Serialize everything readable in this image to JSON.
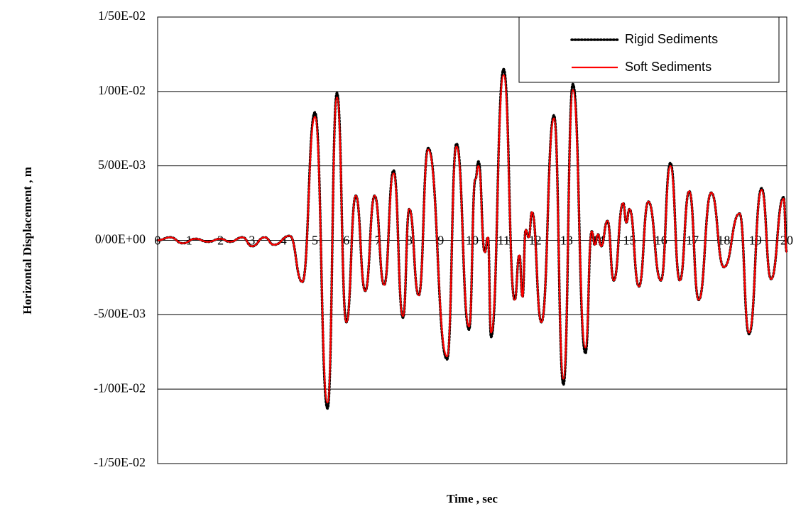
{
  "chart_data": {
    "type": "line",
    "xlabel": "Time  , sec",
    "ylabel": "Horizontal Displacement  , m",
    "xlim": [
      0,
      20
    ],
    "xticks": [
      0,
      1,
      2,
      3,
      4,
      5,
      6,
      7,
      8,
      9,
      10,
      11,
      12,
      13,
      14,
      15,
      16,
      17,
      18,
      19,
      20
    ],
    "ylim": [
      -0.015,
      0.015
    ],
    "yticks": [
      {
        "value": -0.015,
        "label": "-1/50E-02"
      },
      {
        "value": -0.01,
        "label": "-1/00E-02"
      },
      {
        "value": -0.005,
        "label": "-5/00E-03"
      },
      {
        "value": 0,
        "label": "0/00E+00"
      },
      {
        "value": 0.005,
        "label": "5/00E-03"
      },
      {
        "value": 0.01,
        "label": "1/00E-02"
      },
      {
        "value": 0.015,
        "label": "1/50E-02"
      }
    ],
    "grid": true,
    "legend": "upper right",
    "x": [
      0,
      0.4,
      0.8,
      1.2,
      1.6,
      2.0,
      2.3,
      2.7,
      3.0,
      3.4,
      3.7,
      4.2,
      4.6,
      5.0,
      5.4,
      5.7,
      6.0,
      6.3,
      6.6,
      6.9,
      7.2,
      7.5,
      7.8,
      8.0,
      8.3,
      8.6,
      9.2,
      9.5,
      9.9,
      10.1,
      10.2,
      10.4,
      10.5,
      10.6,
      11.0,
      11.35,
      11.5,
      11.6,
      11.7,
      11.8,
      11.9,
      12.2,
      12.6,
      12.9,
      13.2,
      13.6,
      13.8,
      13.9,
      14.0,
      14.1,
      14.3,
      14.5,
      14.8,
      14.9,
      15.0,
      15.3,
      15.6,
      16.0,
      16.3,
      16.6,
      16.9,
      17.2,
      17.6,
      18.0,
      18.5,
      18.8,
      19.2,
      19.5,
      19.9,
      20
    ],
    "series": [
      {
        "name": "Rigid Sediments",
        "color": "#000000",
        "style": "dotted",
        "values": [
          0,
          0.0002,
          -0.0002,
          0.0001,
          -0.0001,
          0.0001,
          -0.0001,
          0.0002,
          -0.0004,
          0.0002,
          -0.0003,
          0.0003,
          -0.0028,
          0.0086,
          -0.0113,
          0.0099,
          -0.0055,
          0.003,
          -0.0034,
          0.003,
          -0.003,
          0.0047,
          -0.0052,
          0.0021,
          -0.0037,
          0.0062,
          -0.008,
          0.0065,
          -0.006,
          0.0041,
          0.0053,
          -0.0008,
          0.0002,
          -0.0065,
          0.0115,
          -0.004,
          -0.001,
          -0.0038,
          0.0007,
          0.0002,
          0.0019,
          -0.0055,
          0.0084,
          -0.0097,
          0.0105,
          -0.0076,
          0.0006,
          -0.0003,
          0.0004,
          -0.0004,
          0.0013,
          -0.0027,
          0.0025,
          0.0012,
          0.0021,
          -0.0031,
          0.0026,
          -0.0027,
          0.0052,
          -0.0027,
          0.0033,
          -0.004,
          0.0032,
          -0.0018,
          0.0018,
          -0.0063,
          0.0035,
          -0.0026,
          0.0029,
          -0.0008
        ]
      },
      {
        "name": "Soft Sediments",
        "color": "#ff0000",
        "style": "solid",
        "values": [
          0,
          0.0002,
          -0.0002,
          0.0001,
          -0.0001,
          0.0001,
          -0.0001,
          0.0002,
          -0.0004,
          0.0002,
          -0.0003,
          0.0003,
          -0.0028,
          0.0083,
          -0.0109,
          0.0096,
          -0.0055,
          0.003,
          -0.0034,
          0.003,
          -0.003,
          0.0045,
          -0.0051,
          0.0021,
          -0.0037,
          0.0061,
          -0.0078,
          0.0063,
          -0.0058,
          0.0041,
          0.005,
          -0.0008,
          0.0002,
          -0.0062,
          0.0111,
          -0.004,
          -0.001,
          -0.0038,
          0.0007,
          0.0002,
          0.0019,
          -0.0055,
          0.0082,
          -0.0093,
          0.0101,
          -0.0072,
          0.0006,
          -0.0003,
          0.0004,
          -0.0004,
          0.0013,
          -0.0027,
          0.0025,
          0.0012,
          0.0021,
          -0.0031,
          0.0026,
          -0.0027,
          0.005,
          -0.0027,
          0.0033,
          -0.004,
          0.0032,
          -0.0018,
          0.0018,
          -0.0062,
          0.0034,
          -0.0026,
          0.0028,
          -0.0008
        ]
      }
    ]
  }
}
